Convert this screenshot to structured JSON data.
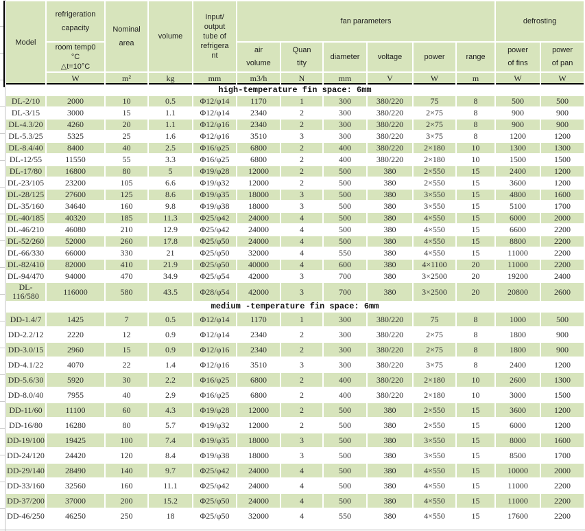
{
  "table": {
    "header": {
      "model": "Model",
      "refrigeration_capacity": "refrigeration\ncapacity",
      "room_temp": "room temp0\n°C\n△t=10°C",
      "nominal_area": "Nominal\narea",
      "volume": "volume",
      "tube": "Input/\noutput\ntube of\nrefrigera\nnt",
      "fan_parameters": "fan parameters",
      "defrosting": "defrosting",
      "air_volume": "air\nvolume",
      "quantity": "Quan\ntity",
      "diameter": "diameter",
      "voltage": "voltage",
      "power": "power",
      "range": "range",
      "power_of_fins": "power\nof fins",
      "power_of_pan": "power\nof pan",
      "units": [
        "W",
        "m²",
        "kg",
        "mm",
        "m3/h",
        "N",
        "mm",
        "V",
        "W",
        "m",
        "W",
        "W"
      ]
    },
    "colors": {
      "stripe_green": "#d7e4bc",
      "grid_white": "#ffffff",
      "rule_black": "#000000"
    },
    "sections": [
      {
        "label": "high-temperature fin space: 6mm",
        "rows": [
          [
            "DL-2/10",
            "2000",
            "10",
            "0.5",
            "Φ12/φ14",
            "1170",
            "1",
            "300",
            "380/220",
            "75",
            "8",
            "500",
            "500"
          ],
          [
            "DL-3/15",
            "3000",
            "15",
            "1.1",
            "Φ12/φ14",
            "2340",
            "2",
            "300",
            "380/220",
            "2×75",
            "8",
            "900",
            "900"
          ],
          [
            "DL-4.3/20",
            "4260",
            "20",
            "1.1",
            "Φ12/φ16",
            "2340",
            "2",
            "300",
            "380/220",
            "2×75",
            "8",
            "900",
            "900"
          ],
          [
            "DL-5.3/25",
            "5325",
            "25",
            "1.6",
            "Φ12/φ16",
            "3510",
            "3",
            "300",
            "380/220",
            "3×75",
            "8",
            "1200",
            "1200"
          ],
          [
            "DL-8.4/40",
            "8400",
            "40",
            "2.5",
            "Φ16/φ25",
            "6800",
            "2",
            "400",
            "380/220",
            "2×180",
            "10",
            "1300",
            "1300"
          ],
          [
            "DL-12/55",
            "11550",
            "55",
            "3.3",
            "Φ16/φ25",
            "6800",
            "2",
            "400",
            "380/220",
            "2×180",
            "10",
            "1500",
            "1500"
          ],
          [
            "DL-17/80",
            "16800",
            "80",
            "5",
            "Φ19/φ28",
            "12000",
            "2",
            "500",
            "380",
            "2×550",
            "15",
            "2400",
            "1200"
          ],
          [
            "DL-23/105",
            "23200",
            "105",
            "6.6",
            "Φ19/φ32",
            "12000",
            "2",
            "500",
            "380",
            "2×550",
            "15",
            "3600",
            "1200"
          ],
          [
            "DL-28/125",
            "27600",
            "125",
            "8.6",
            "Φ19/φ35",
            "18000",
            "3",
            "500",
            "380",
            "3×550",
            "15",
            "4800",
            "1600"
          ],
          [
            "DL-35/160",
            "34640",
            "160",
            "9.8",
            "Φ19/φ38",
            "18000",
            "3",
            "500",
            "380",
            "3×550",
            "15",
            "5100",
            "1700"
          ],
          [
            "DL-40/185",
            "40320",
            "185",
            "11.3",
            "Φ25/φ42",
            "24000",
            "4",
            "500",
            "380",
            "4×550",
            "15",
            "6000",
            "2000"
          ],
          [
            "DL-46/210",
            "46080",
            "210",
            "12.9",
            "Φ25/φ42",
            "24000",
            "4",
            "500",
            "380",
            "4×550",
            "15",
            "6600",
            "2200"
          ],
          [
            "DL-52/260",
            "52000",
            "260",
            "17.8",
            "Φ25/φ50",
            "24000",
            "4",
            "500",
            "380",
            "4×550",
            "15",
            "8800",
            "2200"
          ],
          [
            "DL-66/330",
            "66000",
            "330",
            "21",
            "Φ25/φ50",
            "32000",
            "4",
            "550",
            "380",
            "4×550",
            "15",
            "11000",
            "2200"
          ],
          [
            "DL-82/410",
            "82000",
            "410",
            "21.9",
            "Φ25/φ50",
            "40000",
            "4",
            "600",
            "380",
            "4×1100",
            "20",
            "11000",
            "2200"
          ],
          [
            "DL-94/470",
            "94000",
            "470",
            "34.9",
            "Φ25/φ54",
            "42000",
            "3",
            "700",
            "380",
            "3×2500",
            "20",
            "19200",
            "2400"
          ],
          [
            "DL-\n116/580",
            "116000",
            "580",
            "43.5",
            "Φ28/φ54",
            "42000",
            "3",
            "700",
            "380",
            "3×2500",
            "20",
            "20800",
            "2600"
          ]
        ]
      },
      {
        "label": "medium -temperature fin space: 6mm",
        "rows": [
          [
            "DD-1.4/7",
            "1425",
            "7",
            "0.5",
            "Φ12/φ14",
            "1170",
            "1",
            "300",
            "380/220",
            "75",
            "8",
            "1000",
            "500"
          ],
          [
            "DD-2.2/12",
            "2220",
            "12",
            "0.9",
            "Φ12/φ14",
            "2340",
            "2",
            "300",
            "380/220",
            "2×75",
            "8",
            "1800",
            "900"
          ],
          [
            "DD-3.0/15",
            "2960",
            "15",
            "0.9",
            "Φ12/φ16",
            "2340",
            "2",
            "300",
            "380/220",
            "2×75",
            "8",
            "1800",
            "900"
          ],
          [
            "DD-4.1/22",
            "4070",
            "22",
            "1.4",
            "Φ12/φ16",
            "3510",
            "3",
            "300",
            "380/220",
            "3×75",
            "8",
            "2400",
            "1200"
          ],
          [
            "DD-5.6/30",
            "5920",
            "30",
            "2.2",
            "Φ16/φ25",
            "6800",
            "2",
            "400",
            "380/220",
            "2×180",
            "10",
            "2600",
            "1300"
          ],
          [
            "DD-8.0/40",
            "7955",
            "40",
            "2.9",
            "Φ16/φ25",
            "6800",
            "2",
            "400",
            "380/220",
            "2×180",
            "10",
            "3000",
            "1500"
          ],
          [
            "DD-11/60",
            "11100",
            "60",
            "4.3",
            "Φ19/φ28",
            "12000",
            "2",
            "500",
            "380",
            "2×550",
            "15",
            "3600",
            "1200"
          ],
          [
            "DD-16/80",
            "16280",
            "80",
            "5.7",
            "Φ19/φ32",
            "12000",
            "2",
            "500",
            "380",
            "2×550",
            "15",
            "6000",
            "1200"
          ],
          [
            "DD-19/100",
            "19425",
            "100",
            "7.4",
            "Φ19/φ35",
            "18000",
            "3",
            "500",
            "380",
            "3×550",
            "15",
            "8000",
            "1600"
          ],
          [
            "DD-24/120",
            "24420",
            "120",
            "8.4",
            "Φ19/φ38",
            "18000",
            "3",
            "500",
            "380",
            "3×550",
            "15",
            "8500",
            "1700"
          ],
          [
            "DD-29/140",
            "28490",
            "140",
            "9.7",
            "Φ25/φ42",
            "24000",
            "4",
            "500",
            "380",
            "4×550",
            "15",
            "10000",
            "2000"
          ],
          [
            "DD-33/160",
            "32560",
            "160",
            "11.1",
            "Φ25/φ42",
            "24000",
            "4",
            "500",
            "380",
            "4×550",
            "15",
            "11000",
            "2200"
          ],
          [
            "DD-37/200",
            "37000",
            "200",
            "15.2",
            "Φ25/φ50",
            "24000",
            "4",
            "500",
            "380",
            "4×550",
            "15",
            "11000",
            "2200"
          ],
          [
            "DD-46/250",
            "46250",
            "250",
            "18",
            "Φ25/φ50",
            "32000",
            "4",
            "550",
            "380",
            "4×550",
            "15",
            "17600",
            "2200"
          ]
        ]
      }
    ]
  }
}
